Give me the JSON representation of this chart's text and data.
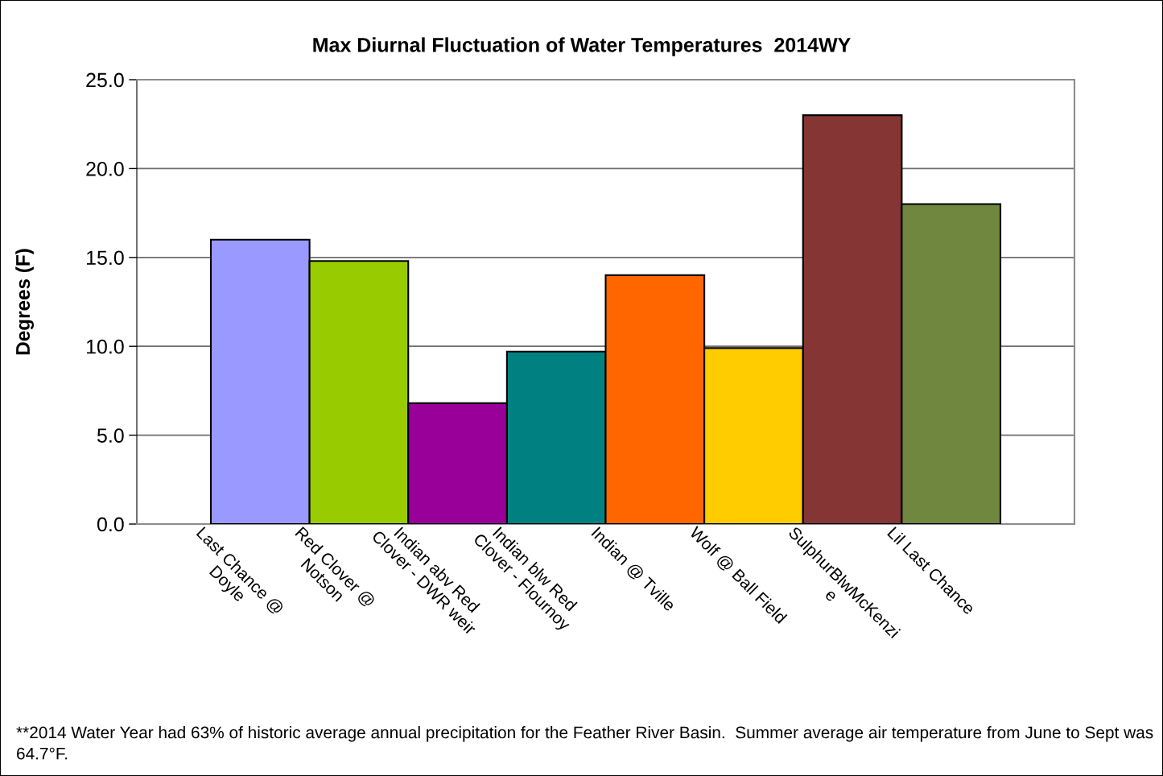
{
  "chart_data": {
    "type": "bar",
    "title": "Max Diurnal Fluctuation of Water Temperatures  2014WY",
    "ylabel": "Degrees (F)",
    "categories": [
      "Last Chance @\nDoyle",
      "Red Clover @\nNotson",
      "Indian abv Red\nClover - DWR weir",
      "Indian blw Red\nClover - Flournoy",
      "Indian @ Tville",
      "Wolf @ Ball Field",
      "SulphurBlwMcKenzi\ne",
      "Lil Last Chance"
    ],
    "values": [
      16.0,
      14.8,
      6.8,
      9.7,
      14.0,
      9.9,
      23.0,
      18.0
    ],
    "colors": [
      "#9999ff",
      "#99cc00",
      "#990099",
      "#008080",
      "#ff6600",
      "#ffcc00",
      "#863535",
      "#6f873e"
    ],
    "ylim": [
      0,
      25
    ],
    "yticks": [
      {
        "value": 0,
        "label": "0.0"
      },
      {
        "value": 5,
        "label": "5.0"
      },
      {
        "value": 10,
        "label": "10.0"
      },
      {
        "value": 15,
        "label": "15.0"
      },
      {
        "value": 20,
        "label": "20.0"
      },
      {
        "value": 25,
        "label": "25.0"
      }
    ],
    "grid": "y",
    "annotations": [
      "**2014 Water Year had 63% of historic average annual precipitation for the Feather River Basin.  Summer average air temperature from June to Sept was 64.7°F."
    ]
  }
}
